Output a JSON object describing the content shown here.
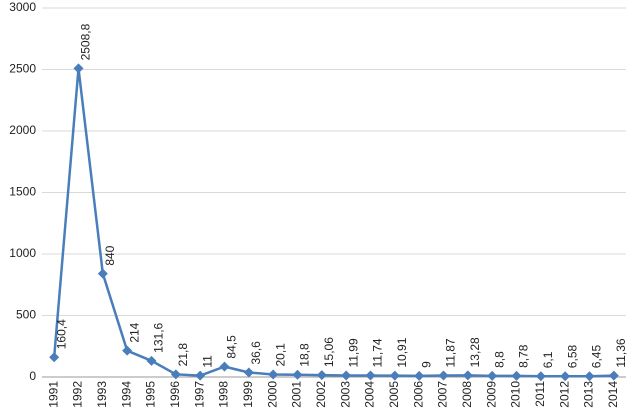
{
  "chart_data": {
    "type": "line",
    "categories": [
      "1991",
      "1992",
      "1993",
      "1994",
      "1995",
      "1996",
      "1997",
      "1998",
      "1999",
      "2000",
      "2001",
      "2002",
      "2003",
      "2004",
      "2005",
      "2006",
      "2007",
      "2008",
      "2009",
      "2010",
      "2011",
      "2012",
      "2013",
      "2014"
    ],
    "values": [
      160.4,
      2508.8,
      840,
      214,
      131.6,
      21.8,
      11,
      84.5,
      36.6,
      20.1,
      18.8,
      15.06,
      11.99,
      11.74,
      10.91,
      9,
      11.87,
      13.28,
      8.8,
      8.78,
      6.1,
      6.58,
      6.45,
      11.36
    ],
    "value_labels": [
      "160,4",
      "2508,8",
      "840",
      "214",
      "131,6",
      "21,8",
      "11",
      "84,5",
      "36,6",
      "20,1",
      "18,8",
      "15,06",
      "11,99",
      "11,74",
      "10,91",
      "9",
      "11,87",
      "13,28",
      "8,8",
      "8,78",
      "6,1",
      "6,58",
      "6,45",
      "11,36"
    ],
    "color": "#4a7ebb",
    "ylim": [
      0,
      3000
    ],
    "yticks": [
      0,
      500,
      1000,
      1500,
      2000,
      2500,
      3000
    ],
    "grid": true
  }
}
